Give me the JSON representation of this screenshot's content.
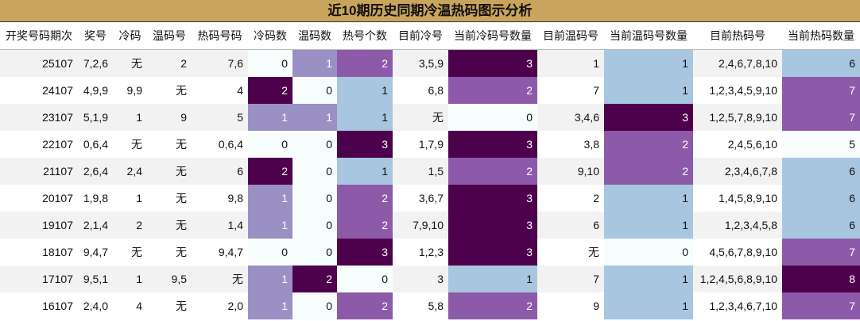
{
  "title": "近10期历史同期冷温热码图示分析",
  "table": {
    "header": [
      "开奖号码期次",
      "奖号",
      "冷码",
      "温码号",
      "热码号码",
      "冷码数",
      "温码数",
      "热号个数",
      "目前冷号",
      "当前冷码号数量",
      "目前温码号",
      "当前温码号数量",
      "目前热码号",
      "当前热码数量"
    ],
    "rows": [
      [
        "25107",
        "7,2,6",
        "无",
        "2",
        "7,6",
        0,
        1,
        2,
        "3,5,9",
        3,
        "1",
        1,
        "2,4,6,7,8,10",
        6
      ],
      [
        "24107",
        "4,9,9",
        "9,9",
        "无",
        "4",
        2,
        0,
        1,
        "6,8",
        2,
        "7",
        1,
        "1,2,3,4,5,9,10",
        7
      ],
      [
        "23107",
        "5,1,9",
        "1",
        "9",
        "5",
        1,
        1,
        1,
        "无",
        0,
        "3,4,6",
        3,
        "1,2,5,7,8,9,10",
        7
      ],
      [
        "22107",
        "0,6,4",
        "无",
        "无",
        "0,6,4",
        0,
        0,
        3,
        "1,7,9",
        3,
        "3,8",
        2,
        "2,4,5,6,10",
        5
      ],
      [
        "21107",
        "2,6,4",
        "2,4",
        "无",
        "6",
        2,
        0,
        1,
        "1,5",
        2,
        "9,10",
        2,
        "2,3,4,6,7,8",
        6
      ],
      [
        "20107",
        "1,9,8",
        "1",
        "无",
        "9,8",
        1,
        0,
        2,
        "3,6,7",
        3,
        "2",
        1,
        "1,4,5,8,9,10",
        6
      ],
      [
        "19107",
        "2,1,4",
        "2",
        "无",
        "1,4",
        1,
        0,
        2,
        "7,9,10",
        3,
        "6",
        1,
        "1,2,3,4,5,8",
        6
      ],
      [
        "18107",
        "9,4,7",
        "无",
        "无",
        "9,4,7",
        0,
        0,
        3,
        "1,2,3",
        3,
        "无",
        0,
        "4,5,6,7,8,9,10",
        7
      ],
      [
        "17107",
        "9,5,1",
        "1",
        "9,5",
        "无",
        1,
        2,
        0,
        "3",
        1,
        "7",
        1,
        "1,2,4,5,6,8,9,10",
        8
      ],
      [
        "16107",
        "2,4,0",
        "4",
        "无",
        "2,0",
        1,
        0,
        2,
        "5,8",
        2,
        "9",
        1,
        "1,2,3,4,6,7,10",
        7
      ]
    ],
    "heatmap_columns": [
      5,
      6,
      7,
      9,
      11,
      13
    ],
    "colormap": [
      "#f7fcfd",
      "#a8c6e0",
      "#8c5aa8",
      "#4d004b"
    ]
  }
}
